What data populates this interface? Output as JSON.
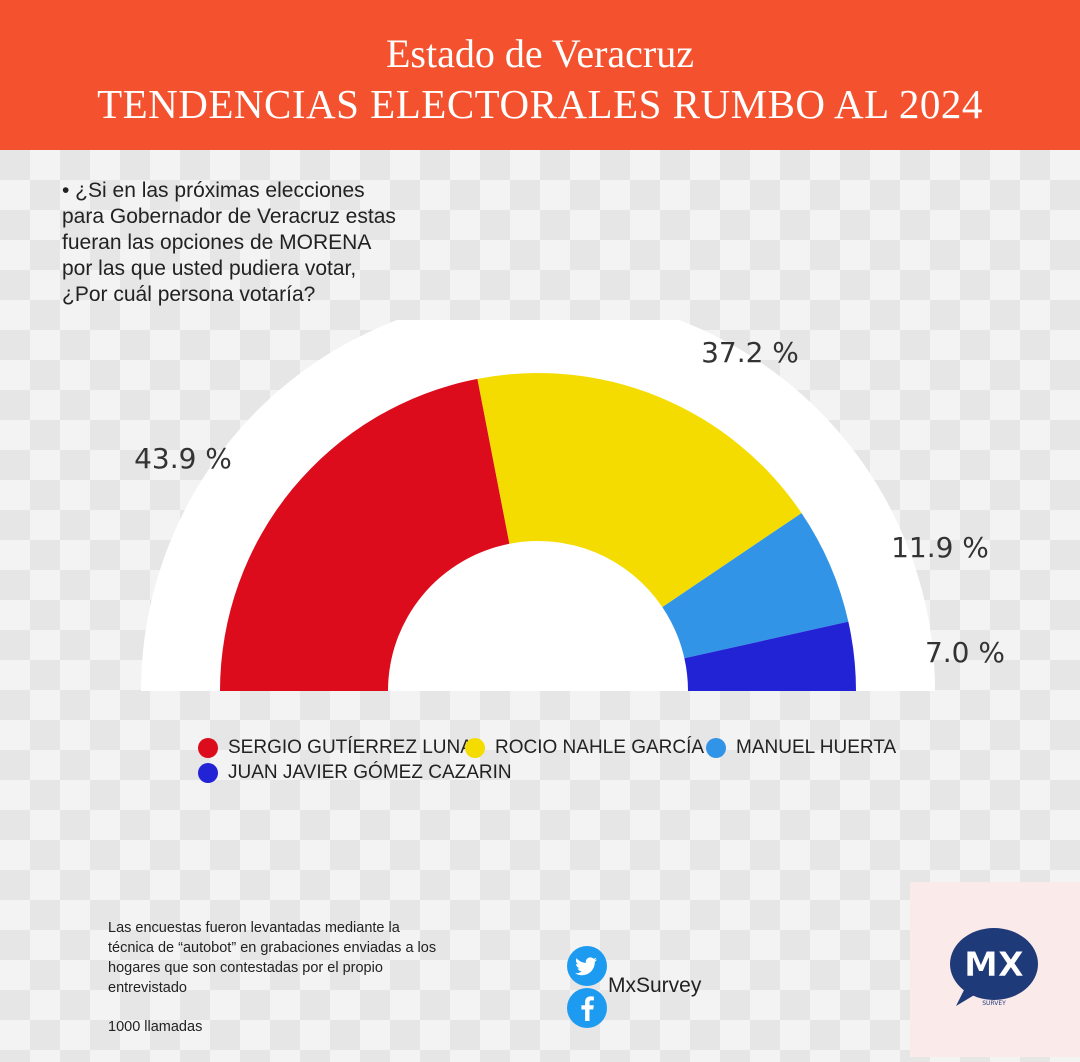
{
  "header": {
    "line1": "Estado de Veracruz",
    "line2": "TENDENCIAS ELECTORALES RUMBO AL 2024"
  },
  "question": "• ¿Si en las próximas elecciones para Gobernador de Veracruz estas fueran las opciones de MORENA por las que usted pudiera votar, ¿Por cuál persona  votaría?",
  "chart_data": {
    "type": "pie",
    "subtype": "semicircle-donut",
    "categories": [
      "SERGIO GUTÍERREZ LUNA",
      "ROCIO NAHLE GARCÍA",
      "MANUEL HUERTA",
      "JUAN JAVIER GÓMEZ CAZARIN"
    ],
    "values": [
      43.9,
      37.2,
      11.9,
      7.0
    ],
    "labels": [
      "43.9 %",
      "37.2 %",
      "11.9 %",
      "7.0 %"
    ],
    "colors": [
      "#dd0c1c",
      "#f4dc00",
      "#3294e6",
      "#2323d6"
    ],
    "legend_position": "bottom"
  },
  "footer": {
    "note": "Las encuestas fueron levantadas mediante la técnica de “autobot” en grabaciones enviadas a los hogares que son contestadas por el propio entrevistado",
    "calls": "1000 llamadas",
    "brand": "MxSurvey",
    "logo_text": "MX",
    "logo_sub": "SURVEY",
    "icons": [
      "twitter-icon",
      "facebook-icon"
    ]
  }
}
